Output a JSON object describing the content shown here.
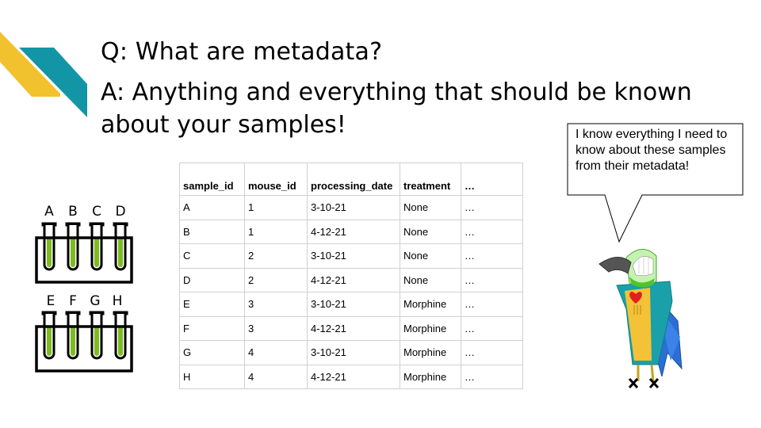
{
  "slide": {
    "question": "Q: What are metadata?",
    "answer": "A: Anything and everything that should be known about your samples!"
  },
  "colors": {
    "teal": "#1296a6",
    "gold": "#f2c12e",
    "tube_green": "#7dbb1e"
  },
  "tubes": {
    "top_labels": [
      "A",
      "B",
      "C",
      "D"
    ],
    "bottom_labels": [
      "E",
      "F",
      "G",
      "H"
    ]
  },
  "table": {
    "headers": [
      "sample_id",
      "mouse_id",
      "processing_date",
      "treatment",
      "…"
    ],
    "rows": [
      [
        "A",
        "1",
        "3-10-21",
        "None",
        "…"
      ],
      [
        "B",
        "1",
        "4-12-21",
        "None",
        "…"
      ],
      [
        "C",
        "2",
        "3-10-21",
        "None",
        "…"
      ],
      [
        "D",
        "2",
        "4-12-21",
        "None",
        "…"
      ],
      [
        "E",
        "3",
        "3-10-21",
        "Morphine",
        "…"
      ],
      [
        "F",
        "3",
        "4-12-21",
        "Morphine",
        "…"
      ],
      [
        "G",
        "4",
        "3-10-21",
        "Morphine",
        "…"
      ],
      [
        "H",
        "4",
        "4-12-21",
        "Morphine",
        "…"
      ]
    ]
  },
  "speech_bubble": {
    "text": "I know everything I need to know about these samples from their metadata!"
  },
  "icons": [
    "corner-ribbon-icon",
    "test-tube-rack-icon",
    "parrot-icon"
  ]
}
